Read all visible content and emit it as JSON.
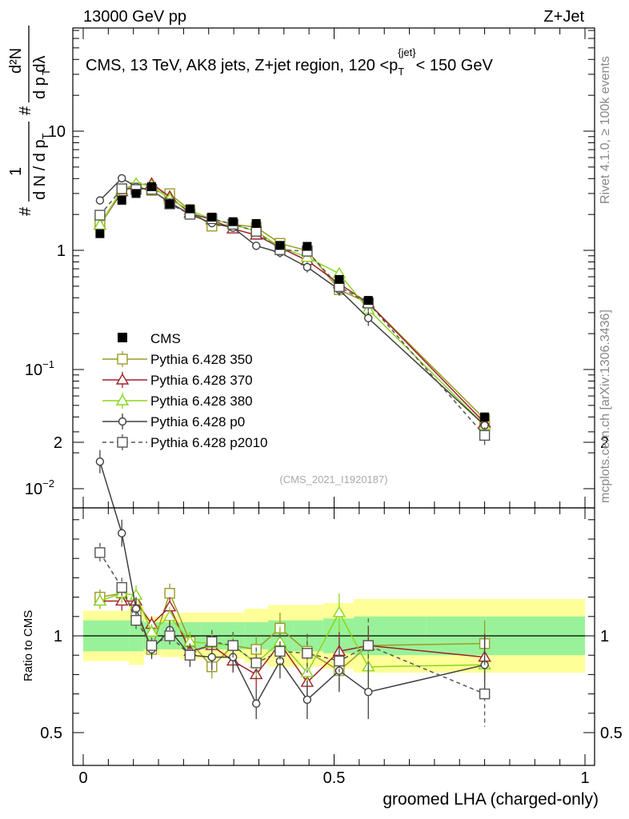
{
  "header": {
    "left": "13000 GeV pp",
    "right": "Z+Jet"
  },
  "side_labels": {
    "rivet": "Rivet 4.1.0, ≥ 100k events",
    "mcplots": "mcplots.cern.ch [arXiv:1306.3436]"
  },
  "watermark": "(CMS_2021_I1920187)",
  "chart_data": [
    {
      "type": "scatter",
      "panel": "main",
      "title": "CMS, 13 TeV, AK8 jets, Z+jet region, 120 <p_T^{jet}< 150 GeV",
      "title_parts": {
        "pre": "CMS, 13 TeV, AK8 jets, Z+jet region, 120 <p",
        "sub": "T",
        "sup": "{jet}",
        "post": "< 150 GeV"
      },
      "ylabel": "1/(dN/dp_T) d²N/(dp_T dλ)",
      "ylabel_parts": {
        "one": "1",
        "num": "d²N",
        "den1": "d N / d p",
        "den2": "d p  dλ",
        "sub": "T",
        "hash": "#"
      },
      "xlabel": "groomed LHA (charged-only)",
      "yscale": "log",
      "ylim": [
        0.008,
        80
      ],
      "xlim": [
        -0.02,
        1.0
      ],
      "yticks": [
        {
          "v": 0.01,
          "label": "10",
          "exp": "−2"
        },
        {
          "v": 0.1,
          "label": "10",
          "exp": "−1"
        },
        {
          "v": 1,
          "label": "1",
          "exp": ""
        },
        {
          "v": 10,
          "label": "10",
          "exp": ""
        }
      ],
      "x": [
        0.0333,
        0.0769,
        0.1053,
        0.1364,
        0.1724,
        0.2128,
        0.2564,
        0.2985,
        0.3448,
        0.3922,
        0.4464,
        0.5102,
        0.5682,
        0.8
      ]
    },
    {
      "type": "scatter",
      "panel": "ratio",
      "ylabel": "Ratio to CMS",
      "ylim": [
        0.4,
        2.35
      ],
      "xticks": [
        {
          "v": 0,
          "label": "0"
        },
        {
          "v": 0.5,
          "label": "0.5"
        },
        {
          "v": 1,
          "label": "1"
        }
      ],
      "yticks": [
        {
          "v": 0.5,
          "label": "0.5"
        },
        {
          "v": 1,
          "label": "1"
        },
        {
          "v": 2,
          "label": "2"
        }
      ]
    }
  ],
  "cms_data": {
    "name": "CMS",
    "values": [
      1.38,
      2.63,
      3.0,
      3.42,
      2.45,
      2.23,
      1.9,
      1.74,
      1.68,
      1.1,
      1.08,
      0.57,
      0.38,
      0.04
    ],
    "band_inner": [
      0.08,
      0.08,
      0.08,
      0.07,
      0.07,
      0.07,
      0.07,
      0.07,
      0.07,
      0.08,
      0.08,
      0.09,
      0.1,
      0.1
    ],
    "band_outer": [
      0.13,
      0.13,
      0.15,
      0.1,
      0.11,
      0.12,
      0.12,
      0.12,
      0.14,
      0.16,
      0.16,
      0.17,
      0.19,
      0.19
    ]
  },
  "series": [
    {
      "name": "Pythia 6.428 350",
      "color": "#9b9b26",
      "marker": "square",
      "dash": false,
      "ratio": [
        1.2,
        1.22,
        1.12,
        0.93,
        1.22,
        0.97,
        0.84,
        0.95,
        0.93,
        1.04,
        0.92,
        0.82,
        0.95,
        0.96
      ],
      "err": [
        0.04,
        0.05,
        0.05,
        0.04,
        0.05,
        0.05,
        0.06,
        0.06,
        0.07,
        0.08,
        0.09,
        0.1,
        0.1,
        0.12
      ]
    },
    {
      "name": "Pythia 6.428 370",
      "color": "#a0202a",
      "marker": "triangle",
      "dash": false,
      "ratio": [
        1.18,
        1.18,
        1.18,
        1.06,
        1.15,
        0.92,
        0.95,
        0.87,
        0.8,
        0.96,
        0.76,
        0.92,
        0.95,
        0.89
      ],
      "err": [
        0.04,
        0.05,
        0.05,
        0.04,
        0.05,
        0.05,
        0.06,
        0.06,
        0.07,
        0.08,
        0.09,
        0.1,
        0.1,
        0.12
      ]
    },
    {
      "name": "Pythia 6.428 380",
      "color": "#8ad61a",
      "marker": "triangle",
      "dash": false,
      "ratio": [
        1.18,
        1.22,
        1.21,
        1.02,
        1.1,
        0.97,
        0.96,
        0.95,
        0.86,
        0.97,
        0.81,
        1.12,
        0.84,
        0.85
      ],
      "err": [
        0.04,
        0.05,
        0.05,
        0.04,
        0.05,
        0.05,
        0.06,
        0.06,
        0.07,
        0.08,
        0.09,
        0.1,
        0.1,
        0.12
      ]
    },
    {
      "name": "Pythia 6.428 p0",
      "color": "#404040",
      "marker": "circle",
      "dash": false,
      "ratio": [
        1.9,
        1.53,
        1.14,
        0.93,
        1.03,
        0.9,
        0.89,
        0.89,
        0.65,
        0.87,
        0.67,
        0.82,
        0.71,
        0.85
      ],
      "err": [
        0.06,
        0.07,
        0.06,
        0.05,
        0.05,
        0.06,
        0.07,
        0.07,
        0.08,
        0.09,
        0.1,
        0.11,
        0.14,
        0.15
      ]
    },
    {
      "name": "Pythia 6.428 p2010",
      "color": "#555555",
      "marker": "square",
      "dash": true,
      "ratio": [
        1.43,
        1.25,
        1.08,
        0.95,
        1.0,
        0.9,
        0.97,
        0.95,
        0.86,
        0.92,
        0.91,
        0.87,
        0.95,
        0.7
      ],
      "err": [
        0.05,
        0.05,
        0.05,
        0.04,
        0.05,
        0.06,
        0.06,
        0.07,
        0.08,
        0.09,
        0.1,
        0.11,
        0.14,
        0.17
      ]
    }
  ]
}
